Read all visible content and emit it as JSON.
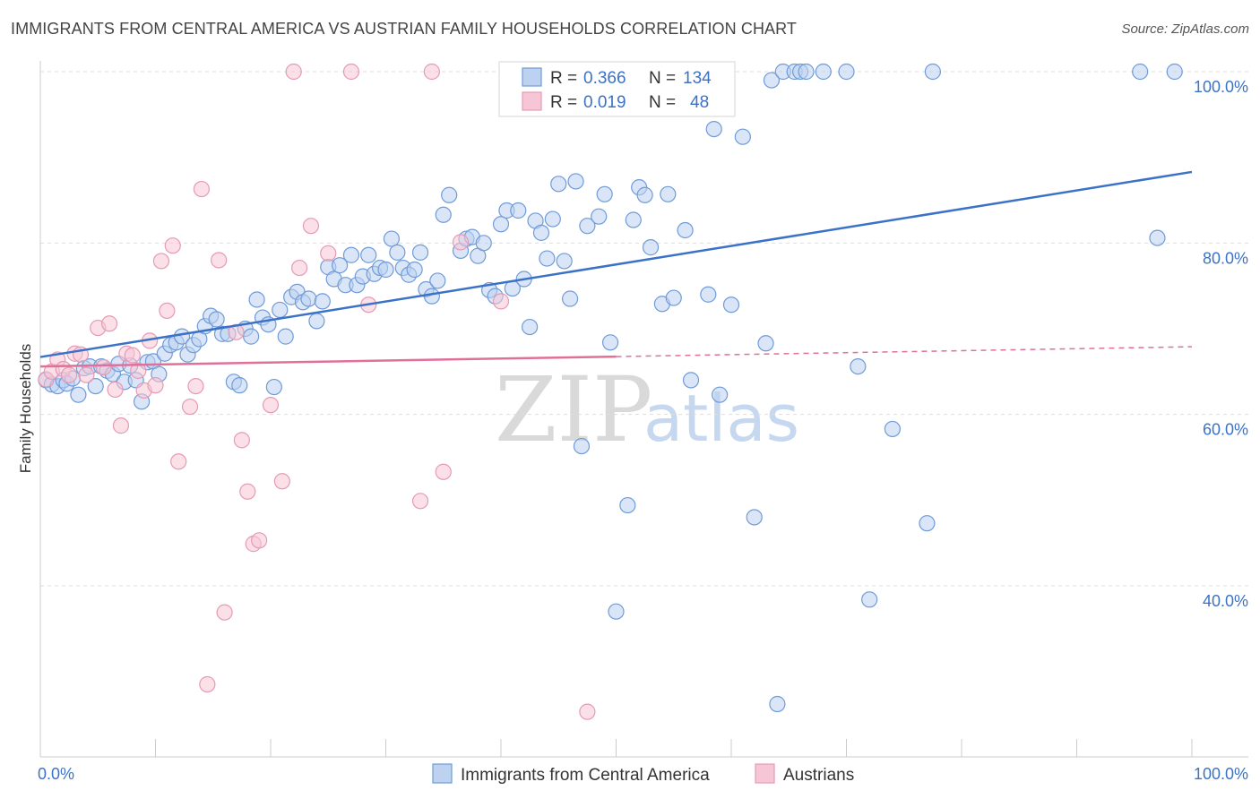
{
  "title": "IMMIGRANTS FROM CENTRAL AMERICA VS AUSTRIAN FAMILY HOUSEHOLDS CORRELATION CHART",
  "source": "Source: ZipAtlas.com",
  "watermark": {
    "zip": "ZIP",
    "atlas": "atlas"
  },
  "colors": {
    "blue": "#3b72c8",
    "blue_fill": "#bcd2f0",
    "blue_stroke": "#6f9bd8",
    "pink": "#e0709a",
    "pink_fill": "#f7c6d6",
    "pink_stroke": "#e59ab6",
    "grid": "#dddddd"
  },
  "chart_data": {
    "type": "scatter",
    "xlabel": "",
    "ylabel": "Family Households",
    "xlim": [
      0,
      100
    ],
    "ylim": [
      20,
      104
    ],
    "x_tick_labels": [
      {
        "v": 0,
        "t": "0.0%"
      },
      {
        "v": 100,
        "t": "100.0%"
      }
    ],
    "y_tick_labels": [
      {
        "v": 40,
        "t": "40.0%"
      },
      {
        "v": 60,
        "t": "60.0%"
      },
      {
        "v": 80,
        "t": "80.0%"
      },
      {
        "v": 100,
        "t": "100.0%"
      }
    ],
    "grid": true,
    "legend": {
      "placement": "top-center",
      "entries": [
        {
          "r_label": "R =",
          "r": "0.366",
          "n_label": "N =",
          "n": "134"
        },
        {
          "r_label": "R =",
          "r": "0.019",
          "n_label": "N =",
          "n": "48"
        }
      ]
    },
    "series": [
      {
        "name": "Immigrants from Central America",
        "color": "#3b72c8",
        "trend": {
          "x": [
            0,
            100
          ],
          "y": [
            66.7,
            88.3
          ]
        },
        "points": [
          [
            0.5,
            64.0
          ],
          [
            1.0,
            63.5
          ],
          [
            1.5,
            63.3
          ],
          [
            2.0,
            64.0
          ],
          [
            2.3,
            63.6
          ],
          [
            2.8,
            64.2
          ],
          [
            3.3,
            62.3
          ],
          [
            3.8,
            65.4
          ],
          [
            4.3,
            65.6
          ],
          [
            4.8,
            63.3
          ],
          [
            5.3,
            65.6
          ],
          [
            5.8,
            65.1
          ],
          [
            6.3,
            64.7
          ],
          [
            6.8,
            65.9
          ],
          [
            7.3,
            63.8
          ],
          [
            7.8,
            65.7
          ],
          [
            8.3,
            64.0
          ],
          [
            8.8,
            61.5
          ],
          [
            9.3,
            66.1
          ],
          [
            9.8,
            66.2
          ],
          [
            10.3,
            64.7
          ],
          [
            10.8,
            67.1
          ],
          [
            11.3,
            68.1
          ],
          [
            11.8,
            68.4
          ],
          [
            12.3,
            69.1
          ],
          [
            12.8,
            67.0
          ],
          [
            13.3,
            68.1
          ],
          [
            13.8,
            68.8
          ],
          [
            14.3,
            70.3
          ],
          [
            14.8,
            71.5
          ],
          [
            15.3,
            71.1
          ],
          [
            15.8,
            69.4
          ],
          [
            16.3,
            69.4
          ],
          [
            16.8,
            63.8
          ],
          [
            17.3,
            63.4
          ],
          [
            17.8,
            70.0
          ],
          [
            18.3,
            69.1
          ],
          [
            18.8,
            73.4
          ],
          [
            19.3,
            71.3
          ],
          [
            19.8,
            70.5
          ],
          [
            20.3,
            63.2
          ],
          [
            20.8,
            72.2
          ],
          [
            21.3,
            69.1
          ],
          [
            21.8,
            73.7
          ],
          [
            22.3,
            74.3
          ],
          [
            22.8,
            73.1
          ],
          [
            23.3,
            73.5
          ],
          [
            24.0,
            70.9
          ],
          [
            24.5,
            73.2
          ],
          [
            25.0,
            77.2
          ],
          [
            25.5,
            75.8
          ],
          [
            26.0,
            77.4
          ],
          [
            26.5,
            75.1
          ],
          [
            27.0,
            78.6
          ],
          [
            27.5,
            75.1
          ],
          [
            28.0,
            76.1
          ],
          [
            28.5,
            78.6
          ],
          [
            29.0,
            76.4
          ],
          [
            29.5,
            77.1
          ],
          [
            30.0,
            76.9
          ],
          [
            30.5,
            80.5
          ],
          [
            31.0,
            78.9
          ],
          [
            31.5,
            77.1
          ],
          [
            32.0,
            76.3
          ],
          [
            32.5,
            76.9
          ],
          [
            33.0,
            78.9
          ],
          [
            33.5,
            74.6
          ],
          [
            34.0,
            73.8
          ],
          [
            34.5,
            75.6
          ],
          [
            35.0,
            83.3
          ],
          [
            35.5,
            85.6
          ],
          [
            36.5,
            79.1
          ],
          [
            37.0,
            80.5
          ],
          [
            37.5,
            80.7
          ],
          [
            38.0,
            78.5
          ],
          [
            38.5,
            80.0
          ],
          [
            39.0,
            74.5
          ],
          [
            39.5,
            73.8
          ],
          [
            40.0,
            82.2
          ],
          [
            40.5,
            83.8
          ],
          [
            41.0,
            74.7
          ],
          [
            41.5,
            83.8
          ],
          [
            42.0,
            75.8
          ],
          [
            42.5,
            70.2
          ],
          [
            43.0,
            82.6
          ],
          [
            43.5,
            81.2
          ],
          [
            44.0,
            78.2
          ],
          [
            44.5,
            82.8
          ],
          [
            45.0,
            86.9
          ],
          [
            45.5,
            77.9
          ],
          [
            46.0,
            73.5
          ],
          [
            46.5,
            87.2
          ],
          [
            47.0,
            56.3
          ],
          [
            47.5,
            82.0
          ],
          [
            48.0,
            95.9
          ],
          [
            48.5,
            83.1
          ],
          [
            49.0,
            85.7
          ],
          [
            49.5,
            68.4
          ],
          [
            50.0,
            37.0
          ],
          [
            51.0,
            49.4
          ],
          [
            51.5,
            82.7
          ],
          [
            52.0,
            86.5
          ],
          [
            52.5,
            85.6
          ],
          [
            53.0,
            79.5
          ],
          [
            54.0,
            72.9
          ],
          [
            54.5,
            85.7
          ],
          [
            55.0,
            73.6
          ],
          [
            55.5,
            100.0
          ],
          [
            56.0,
            81.5
          ],
          [
            56.5,
            64.0
          ],
          [
            57.0,
            100.0
          ],
          [
            58.0,
            74.0
          ],
          [
            58.5,
            93.3
          ],
          [
            59.0,
            62.3
          ],
          [
            60.0,
            72.8
          ],
          [
            61.0,
            92.4
          ],
          [
            62.0,
            48.0
          ],
          [
            63.0,
            68.3
          ],
          [
            63.5,
            99.0
          ],
          [
            64.0,
            26.2
          ],
          [
            64.5,
            100.0
          ],
          [
            65.5,
            100.0
          ],
          [
            66.0,
            100.0
          ],
          [
            66.5,
            100.0
          ],
          [
            68.0,
            100.0
          ],
          [
            70.0,
            100.0
          ],
          [
            71.0,
            65.6
          ],
          [
            72.0,
            38.4
          ],
          [
            74.0,
            58.3
          ],
          [
            77.0,
            47.3
          ],
          [
            77.5,
            100.0
          ],
          [
            95.5,
            100.0
          ],
          [
            97.0,
            80.6
          ],
          [
            98.5,
            100.0
          ]
        ]
      },
      {
        "name": "Austrians",
        "color": "#e0709a",
        "trend": {
          "x": [
            0,
            100
          ],
          "y": [
            65.6,
            67.9
          ]
        },
        "trend_solid_to": 50,
        "points": [
          [
            0.5,
            64.1
          ],
          [
            1.0,
            65.0
          ],
          [
            1.5,
            66.4
          ],
          [
            2.0,
            65.3
          ],
          [
            2.5,
            64.6
          ],
          [
            3.0,
            67.1
          ],
          [
            3.5,
            67.0
          ],
          [
            4.0,
            64.6
          ],
          [
            5.0,
            70.1
          ],
          [
            5.5,
            65.5
          ],
          [
            6.0,
            70.6
          ],
          [
            6.5,
            62.9
          ],
          [
            7.0,
            58.7
          ],
          [
            7.5,
            67.1
          ],
          [
            8.0,
            66.9
          ],
          [
            8.5,
            65.1
          ],
          [
            9.0,
            62.8
          ],
          [
            9.5,
            68.6
          ],
          [
            10.0,
            63.4
          ],
          [
            10.5,
            77.9
          ],
          [
            11.0,
            72.1
          ],
          [
            11.5,
            79.7
          ],
          [
            12.0,
            54.5
          ],
          [
            13.0,
            60.9
          ],
          [
            13.5,
            63.3
          ],
          [
            14.0,
            86.3
          ],
          [
            14.5,
            28.5
          ],
          [
            15.5,
            78.0
          ],
          [
            16.0,
            36.9
          ],
          [
            17.0,
            69.6
          ],
          [
            17.5,
            57.0
          ],
          [
            18.0,
            51.0
          ],
          [
            18.5,
            44.9
          ],
          [
            19.0,
            45.3
          ],
          [
            20.0,
            61.1
          ],
          [
            21.0,
            52.2
          ],
          [
            22.0,
            100.0
          ],
          [
            22.5,
            77.1
          ],
          [
            23.5,
            82.0
          ],
          [
            25.0,
            78.8
          ],
          [
            27.0,
            100.0
          ],
          [
            28.5,
            72.8
          ],
          [
            33.0,
            49.9
          ],
          [
            34.0,
            100.0
          ],
          [
            35.0,
            53.3
          ],
          [
            36.5,
            80.1
          ],
          [
            40.0,
            73.2
          ],
          [
            47.5,
            25.3
          ]
        ]
      }
    ]
  },
  "bottom_legend": [
    {
      "label": "Immigrants from Central America",
      "color": "blue"
    },
    {
      "label": "Austrians",
      "color": "pink"
    }
  ]
}
